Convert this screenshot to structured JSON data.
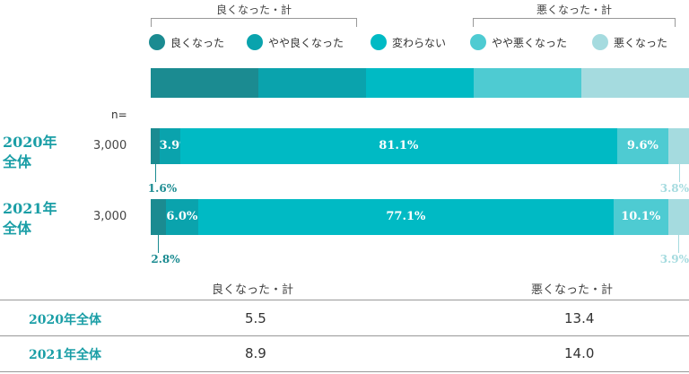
{
  "groups": {
    "better_total_label": "良くなった・計",
    "worse_total_label": "悪くなった・計"
  },
  "colors": {
    "better": "#1b8b91",
    "slightly_better": "#0aa3ad",
    "same": "#00bac4",
    "slightly_worse": "#4ecbd2",
    "worse": "#a5dbdf"
  },
  "legend": [
    {
      "key": "better",
      "label": "良くなった"
    },
    {
      "key": "slightly_better",
      "label": "やや良くなった"
    },
    {
      "key": "same",
      "label": "変わらない"
    },
    {
      "key": "slightly_worse",
      "label": "やや悪くなった"
    },
    {
      "key": "worse",
      "label": "悪くなった"
    }
  ],
  "n_header": "n=",
  "chart_data": {
    "type": "bar",
    "orientation": "horizontal",
    "stacked": "percent",
    "categories": [
      "2020年全体",
      "2021年全体"
    ],
    "n": [
      "3,000",
      "3,000"
    ],
    "series": [
      {
        "name": "良くなった",
        "values": [
          1.6,
          2.8
        ]
      },
      {
        "name": "やや良くなった",
        "values": [
          3.9,
          6.0
        ]
      },
      {
        "name": "変わらない",
        "values": [
          81.1,
          77.1
        ]
      },
      {
        "name": "やや悪くなった",
        "values": [
          9.6,
          10.1
        ]
      },
      {
        "name": "悪くなった",
        "values": [
          3.8,
          3.9
        ]
      }
    ],
    "data_labels": [
      [
        "1.6%",
        "3.9%",
        "81.1%",
        "9.6%",
        "3.8%"
      ],
      [
        "2.8%",
        "6.0%",
        "77.1%",
        "10.1%",
        "3.9%"
      ]
    ]
  },
  "rows": [
    {
      "title_line1": "2020年",
      "title_line2": "全体",
      "n": "3,000"
    },
    {
      "title_line1": "2021年",
      "title_line2": "全体",
      "n": "3,000"
    }
  ],
  "summary_table": {
    "headers": [
      "良くなった・計",
      "悪くなった・計"
    ],
    "rows": [
      {
        "label": "2020年全体",
        "better_total": "5.5",
        "worse_total": "13.4"
      },
      {
        "label": "2021年全体",
        "better_total": "8.9",
        "worse_total": "14.0"
      }
    ]
  }
}
